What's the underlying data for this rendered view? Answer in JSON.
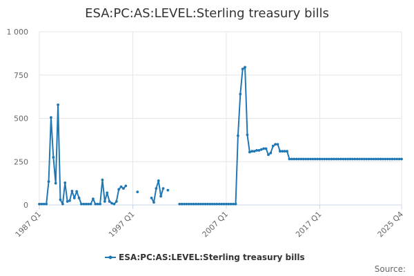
{
  "chart_data": {
    "type": "line",
    "title": "ESA:PC:AS:LEVEL:Sterling treasury bills",
    "xlabel": "",
    "ylabel": "",
    "ylim": [
      0,
      1000
    ],
    "y_ticks": [
      0,
      250,
      500,
      750,
      1000
    ],
    "y_tick_labels": [
      "0",
      "250",
      "500",
      "750",
      "1 000"
    ],
    "x_tick_labels": [
      "1987 Q1",
      "1997 Q1",
      "2007 Q1",
      "2017 Q1",
      "2025 Q4"
    ],
    "x_tick_positions": [
      "1987 Q1",
      "1997 Q1",
      "2007 Q1",
      "2017 Q1",
      "2025 Q4"
    ],
    "grid": true,
    "legend_placement": "bottom",
    "series_color": "#1f77b4",
    "source_label": "Source:",
    "series": [
      {
        "name": "ESA:PC:AS:LEVEL:Sterling treasury bills",
        "points": [
          [
            "1987 Q1",
            5
          ],
          [
            "1987 Q2",
            5
          ],
          [
            "1987 Q3",
            5
          ],
          [
            "1987 Q4",
            5
          ],
          [
            "1988 Q1",
            135
          ],
          [
            "1988 Q2",
            505
          ],
          [
            "1988 Q3",
            275
          ],
          [
            "1988 Q4",
            125
          ],
          [
            "1989 Q1",
            578
          ],
          [
            "1989 Q2",
            30
          ],
          [
            "1989 Q3",
            5
          ],
          [
            "1989 Q4",
            128
          ],
          [
            "1990 Q1",
            20
          ],
          [
            "1990 Q2",
            25
          ],
          [
            "1990 Q3",
            80
          ],
          [
            "1990 Q4",
            40
          ],
          [
            "1991 Q1",
            78
          ],
          [
            "1991 Q2",
            40
          ],
          [
            "1991 Q3",
            5
          ],
          [
            "1991 Q4",
            5
          ],
          [
            "1992 Q1",
            5
          ],
          [
            "1992 Q2",
            5
          ],
          [
            "1992 Q3",
            5
          ],
          [
            "1992 Q4",
            35
          ],
          [
            "1993 Q1",
            5
          ],
          [
            "1993 Q2",
            5
          ],
          [
            "1993 Q3",
            5
          ],
          [
            "1993 Q4",
            145
          ],
          [
            "1994 Q1",
            20
          ],
          [
            "1994 Q2",
            70
          ],
          [
            "1994 Q3",
            20
          ],
          [
            "1994 Q4",
            10
          ],
          [
            "1995 Q1",
            5
          ],
          [
            "1995 Q2",
            20
          ],
          [
            "1995 Q3",
            90
          ],
          [
            "1995 Q4",
            105
          ],
          [
            "1996 Q1",
            95
          ],
          [
            "1996 Q2",
            110
          ],
          [
            "1996 Q3",
            null
          ],
          [
            "1996 Q4",
            null
          ],
          [
            "1997 Q1",
            null
          ],
          [
            "1997 Q2",
            null
          ],
          [
            "1997 Q3",
            75
          ],
          [
            "1997 Q4",
            null
          ],
          [
            "1998 Q1",
            null
          ],
          [
            "1998 Q2",
            null
          ],
          [
            "1998 Q3",
            null
          ],
          [
            "1998 Q4",
            null
          ],
          [
            "1999 Q1",
            40
          ],
          [
            "1999 Q2",
            15
          ],
          [
            "1999 Q3",
            95
          ],
          [
            "1999 Q4",
            140
          ],
          [
            "2000 Q1",
            50
          ],
          [
            "2000 Q2",
            95
          ],
          [
            "2000 Q3",
            null
          ],
          [
            "2000 Q4",
            85
          ],
          [
            "2001 Q1",
            null
          ],
          [
            "2001 Q2",
            null
          ],
          [
            "2001 Q3",
            null
          ],
          [
            "2001 Q4",
            null
          ],
          [
            "2002 Q1",
            5
          ],
          [
            "2002 Q2",
            5
          ],
          [
            "2002 Q3",
            5
          ],
          [
            "2002 Q4",
            5
          ],
          [
            "2003 Q1",
            5
          ],
          [
            "2003 Q2",
            5
          ],
          [
            "2003 Q3",
            5
          ],
          [
            "2003 Q4",
            5
          ],
          [
            "2004 Q1",
            5
          ],
          [
            "2004 Q2",
            5
          ],
          [
            "2004 Q3",
            5
          ],
          [
            "2004 Q4",
            5
          ],
          [
            "2005 Q1",
            5
          ],
          [
            "2005 Q2",
            5
          ],
          [
            "2005 Q3",
            5
          ],
          [
            "2005 Q4",
            5
          ],
          [
            "2006 Q1",
            5
          ],
          [
            "2006 Q2",
            5
          ],
          [
            "2006 Q3",
            5
          ],
          [
            "2006 Q4",
            5
          ],
          [
            "2007 Q1",
            5
          ],
          [
            "2007 Q2",
            5
          ],
          [
            "2007 Q3",
            5
          ],
          [
            "2007 Q4",
            5
          ],
          [
            "2008 Q1",
            5
          ],
          [
            "2008 Q2",
            400
          ],
          [
            "2008 Q3",
            640
          ],
          [
            "2008 Q4",
            785
          ],
          [
            "2009 Q1",
            795
          ],
          [
            "2009 Q2",
            405
          ],
          [
            "2009 Q3",
            305
          ],
          [
            "2009 Q4",
            310
          ],
          [
            "2010 Q1",
            310
          ],
          [
            "2010 Q2",
            315
          ],
          [
            "2010 Q3",
            315
          ],
          [
            "2010 Q4",
            320
          ],
          [
            "2011 Q1",
            325
          ],
          [
            "2011 Q2",
            325
          ],
          [
            "2011 Q3",
            290
          ],
          [
            "2011 Q4",
            300
          ],
          [
            "2012 Q1",
            340
          ],
          [
            "2012 Q2",
            350
          ],
          [
            "2012 Q3",
            350
          ],
          [
            "2012 Q4",
            310
          ],
          [
            "2013 Q1",
            310
          ],
          [
            "2013 Q2",
            310
          ],
          [
            "2013 Q3",
            310
          ],
          [
            "2013 Q4",
            265
          ],
          [
            "2014 Q1",
            265
          ],
          [
            "2014 Q2",
            265
          ],
          [
            "2014 Q3",
            265
          ],
          [
            "2014 Q4",
            265
          ],
          [
            "2015 Q1",
            265
          ],
          [
            "2015 Q2",
            265
          ],
          [
            "2015 Q3",
            265
          ],
          [
            "2015 Q4",
            265
          ],
          [
            "2016 Q1",
            265
          ],
          [
            "2016 Q2",
            265
          ],
          [
            "2016 Q3",
            265
          ],
          [
            "2016 Q4",
            265
          ],
          [
            "2017 Q1",
            265
          ],
          [
            "2017 Q2",
            265
          ],
          [
            "2017 Q3",
            265
          ],
          [
            "2017 Q4",
            265
          ],
          [
            "2018 Q1",
            265
          ],
          [
            "2018 Q2",
            265
          ],
          [
            "2018 Q3",
            265
          ],
          [
            "2018 Q4",
            265
          ],
          [
            "2019 Q1",
            265
          ],
          [
            "2019 Q2",
            265
          ],
          [
            "2019 Q3",
            265
          ],
          [
            "2019 Q4",
            265
          ],
          [
            "2020 Q1",
            265
          ],
          [
            "2020 Q2",
            265
          ],
          [
            "2020 Q3",
            265
          ],
          [
            "2020 Q4",
            265
          ],
          [
            "2021 Q1",
            265
          ],
          [
            "2021 Q2",
            265
          ],
          [
            "2021 Q3",
            265
          ],
          [
            "2021 Q4",
            265
          ],
          [
            "2022 Q1",
            265
          ],
          [
            "2022 Q2",
            265
          ],
          [
            "2022 Q3",
            265
          ],
          [
            "2022 Q4",
            265
          ],
          [
            "2023 Q1",
            265
          ],
          [
            "2023 Q2",
            265
          ],
          [
            "2023 Q3",
            265
          ],
          [
            "2023 Q4",
            265
          ],
          [
            "2024 Q1",
            265
          ],
          [
            "2024 Q2",
            265
          ],
          [
            "2024 Q3",
            265
          ],
          [
            "2024 Q4",
            265
          ],
          [
            "2025 Q1",
            265
          ],
          [
            "2025 Q2",
            265
          ],
          [
            "2025 Q3",
            265
          ],
          [
            "2025 Q4",
            265
          ]
        ]
      }
    ]
  }
}
